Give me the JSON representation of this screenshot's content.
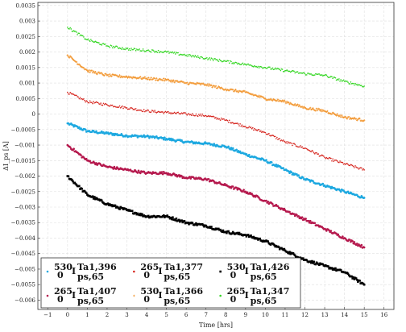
{
  "chart_data": {
    "type": "scatter",
    "title": "",
    "xlabel": "Time [hrs]",
    "ylabel": "ΔI_ps [A]",
    "xlim": [
      -1.5,
      16.5
    ],
    "ylim": [
      -0.0063,
      0.0036
    ],
    "xticks": [
      "−1",
      "0",
      "1",
      "2",
      "3",
      "4",
      "5",
      "6",
      "7",
      "8",
      "9",
      "10",
      "11",
      "12",
      "13",
      "14",
      "15",
      "16"
    ],
    "yticks": [
      "0.0035",
      "0.003",
      "0.0025",
      "0.002",
      "0.0015",
      "0.001",
      "0.0005",
      "0",
      "−0.0005",
      "−0.001",
      "−0.0015",
      "−0.002",
      "−0.0025",
      "−0.003",
      "−0.0035",
      "−0.004",
      "−0.0045",
      "−0.005",
      "−0.0055",
      "−0.006"
    ],
    "grid": true,
    "legend_position": "bottom-left",
    "series": [
      {
        "name": "530 0 I Ta1,396 ps,65",
        "legend_parts": {
          "pre": "530",
          "sub": "0",
          "main": "I",
          "sup": "Ta1,396",
          "sub2": "ps,65"
        },
        "color": "#1ca8e0",
        "marker": "dot",
        "x": [
          0,
          1,
          2,
          3,
          4,
          5,
          6,
          7,
          8,
          9,
          10,
          11,
          12,
          13,
          14,
          15
        ],
        "y": [
          -0.0003,
          -0.00055,
          -0.00062,
          -0.0007,
          -0.00072,
          -0.0008,
          -0.0009,
          -0.00095,
          -0.00105,
          -0.0013,
          -0.0015,
          -0.0018,
          -0.0021,
          -0.0023,
          -0.0025,
          -0.0027
        ]
      },
      {
        "name": "265 0 I Ta1,377 ps,65",
        "legend_parts": {
          "pre": "265",
          "sub": "0",
          "main": "I",
          "sup": "Ta1,377",
          "sub2": "ps,65"
        },
        "color": "#d6251e",
        "marker": "small-dot",
        "x": [
          0,
          1,
          2,
          3,
          4,
          5,
          6,
          7,
          8,
          9,
          10,
          11,
          12,
          13,
          14,
          15
        ],
        "y": [
          0.0007,
          0.0004,
          0.0003,
          0.0002,
          0.0001,
          5e-05,
          0.0,
          -5e-05,
          -0.0002,
          -0.0004,
          -0.0006,
          -0.0009,
          -0.0011,
          -0.0014,
          -0.0016,
          -0.0018
        ]
      },
      {
        "name": "530 0 I Ta1,426 ps,65",
        "legend_parts": {
          "pre": "530",
          "sub": "0",
          "main": "I",
          "sup": "Ta1,426",
          "sub2": "ps,65"
        },
        "color": "#000000",
        "marker": "square",
        "x": [
          0,
          1,
          2,
          3,
          4,
          5,
          6,
          7,
          8,
          9,
          10,
          11,
          12,
          13,
          14,
          15
        ],
        "y": [
          -0.002,
          -0.0026,
          -0.0029,
          -0.0031,
          -0.0033,
          -0.0033,
          -0.0035,
          -0.0036,
          -0.0038,
          -0.0039,
          -0.0041,
          -0.0044,
          -0.0047,
          -0.0049,
          -0.0051,
          -0.0055
        ]
      },
      {
        "name": "265 0 I Ta1,407 ps,65",
        "legend_parts": {
          "pre": "265",
          "sub": "0",
          "main": "I",
          "sup": "Ta1,407",
          "sub2": "ps,65"
        },
        "color": "#b5184d",
        "marker": "dot",
        "x": [
          0,
          1,
          2,
          3,
          4,
          5,
          6,
          7,
          8,
          9,
          10,
          11,
          12,
          13,
          14,
          15
        ],
        "y": [
          -0.001,
          -0.0015,
          -0.0017,
          -0.0018,
          -0.0019,
          -0.0019,
          -0.00205,
          -0.0021,
          -0.0023,
          -0.0025,
          -0.0028,
          -0.0031,
          -0.0034,
          -0.0037,
          -0.004,
          -0.0043
        ]
      },
      {
        "name": "530 0 I Ta1,366 ps,65",
        "legend_parts": {
          "pre": "530",
          "sub": "0",
          "main": "I",
          "sup": "Ta1,366",
          "sub2": "ps,65"
        },
        "color": "#f2962f",
        "marker": "cross",
        "x": [
          0,
          1,
          2,
          3,
          4,
          5,
          6,
          7,
          8,
          9,
          10,
          11,
          12,
          13,
          14,
          15
        ],
        "y": [
          0.0019,
          0.0014,
          0.00125,
          0.0012,
          0.00115,
          0.0011,
          0.001,
          0.00095,
          0.0008,
          0.0007,
          0.0005,
          0.0004,
          0.0002,
          0.0001,
          -0.0001,
          -0.0002
        ]
      },
      {
        "name": "265 0 I Ta1,347 ps,65",
        "legend_parts": {
          "pre": "265",
          "sub": "0",
          "main": "I",
          "sup": "Ta1,347",
          "sub2": "ps,65"
        },
        "color": "#33d622",
        "marker": "small-dot",
        "x": [
          0,
          1,
          2,
          3,
          4,
          5,
          6,
          7,
          8,
          9,
          10,
          11,
          12,
          13,
          14,
          15
        ],
        "y": [
          0.0028,
          0.0024,
          0.0022,
          0.0021,
          0.00205,
          0.002,
          0.0019,
          0.0018,
          0.0017,
          0.0016,
          0.0015,
          0.0014,
          0.0013,
          0.00125,
          0.00105,
          0.0009
        ]
      }
    ]
  }
}
